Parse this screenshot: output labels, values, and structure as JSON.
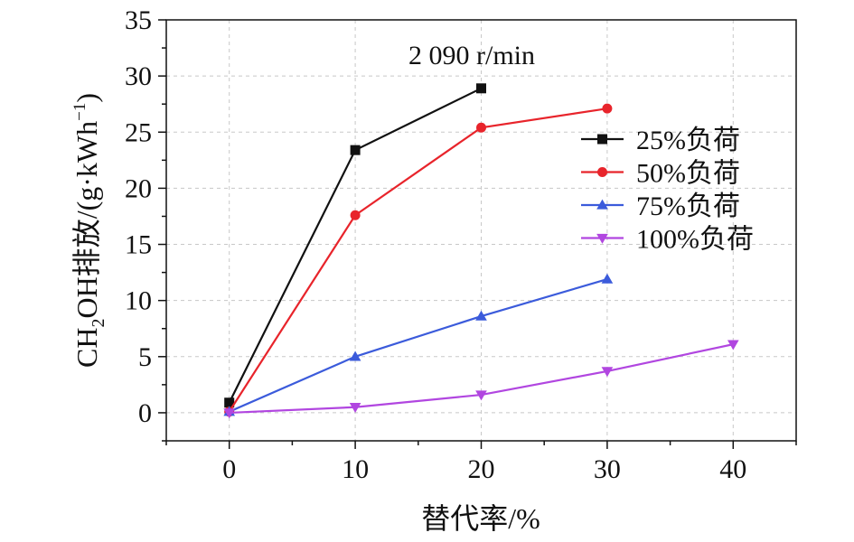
{
  "chart_data": {
    "type": "line",
    "title": "",
    "annotation": "2 090 r/min",
    "xlabel": "替代率/%",
    "ylabel_parts": {
      "pre": "CH",
      "sub": "2",
      "mid": "OH排放/(g·kWh",
      "sup": "−1",
      "post": ")"
    },
    "xlim": [
      -5,
      45
    ],
    "ylim": [
      -2.5,
      35
    ],
    "x_ticks": [
      0,
      10,
      20,
      30,
      40
    ],
    "y_ticks": [
      0,
      5,
      10,
      15,
      20,
      25,
      30,
      35
    ],
    "grid": true,
    "legend_position": "right",
    "series": [
      {
        "name": "25%负荷",
        "color": "#111111",
        "marker": "square",
        "x": [
          0,
          10,
          20
        ],
        "values": [
          0.9,
          23.4,
          28.9
        ]
      },
      {
        "name": "50%负荷",
        "color": "#e8242b",
        "marker": "circle",
        "x": [
          0,
          10,
          20,
          30
        ],
        "values": [
          0.1,
          17.6,
          25.4,
          27.1
        ]
      },
      {
        "name": "75%负荷",
        "color": "#3b5bdb",
        "marker": "triangle-up",
        "x": [
          0,
          10,
          20,
          30
        ],
        "values": [
          0.1,
          5.0,
          8.6,
          11.9
        ]
      },
      {
        "name": "100%负荷",
        "color": "#b146e0",
        "marker": "triangle-down",
        "x": [
          0,
          10,
          20,
          30,
          40
        ],
        "values": [
          0.0,
          0.5,
          1.6,
          3.7,
          6.1
        ]
      }
    ]
  }
}
